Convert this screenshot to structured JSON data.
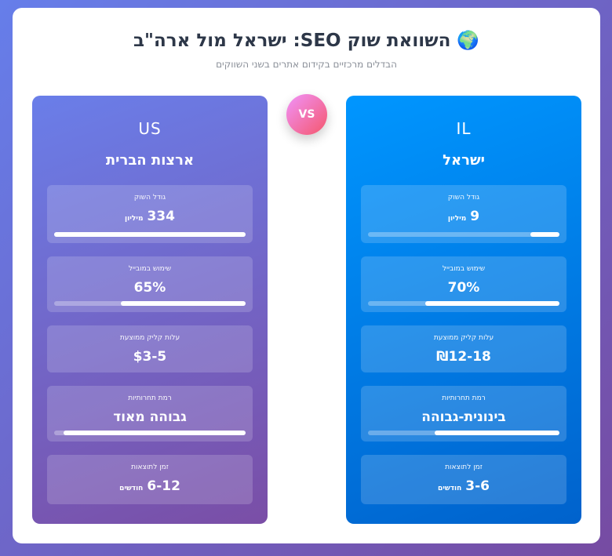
{
  "header": {
    "icon": "🌍",
    "title": "השוואת שוק SEO: ישראל מול ארה\"ב",
    "subtitle": "הבדלים מרכזיים בקידום אתרים בשני השווקים"
  },
  "vs": "VS",
  "markets": [
    {
      "code": "IL",
      "name": "ישראל",
      "metrics": [
        {
          "label": "גודל השוק",
          "value": "9",
          "unit": "מיליון",
          "bar": 15
        },
        {
          "label": "שימוש במובייל",
          "value": "70%",
          "bar": 70
        },
        {
          "label": "עלות קליק ממוצעת",
          "value": "₪12-18"
        },
        {
          "label": "רמת תחרותיות",
          "value": "בינונית-גבוהה",
          "bar": 65
        },
        {
          "label": "זמן לתוצאות",
          "value": "3-6",
          "unit": "חודשים"
        }
      ]
    },
    {
      "code": "US",
      "name": "ארצות הברית",
      "metrics": [
        {
          "label": "גודל השוק",
          "value": "334",
          "unit": "מיליון",
          "bar": 100
        },
        {
          "label": "שימוש במובייל",
          "value": "65%",
          "bar": 65
        },
        {
          "label": "עלות קליק ממוצעת",
          "value": "$3-5"
        },
        {
          "label": "רמת תחרותיות",
          "value": "גבוהה מאוד",
          "bar": 95
        },
        {
          "label": "זמן לתוצאות",
          "value": "6-12",
          "unit": "חודשים"
        }
      ]
    }
  ]
}
